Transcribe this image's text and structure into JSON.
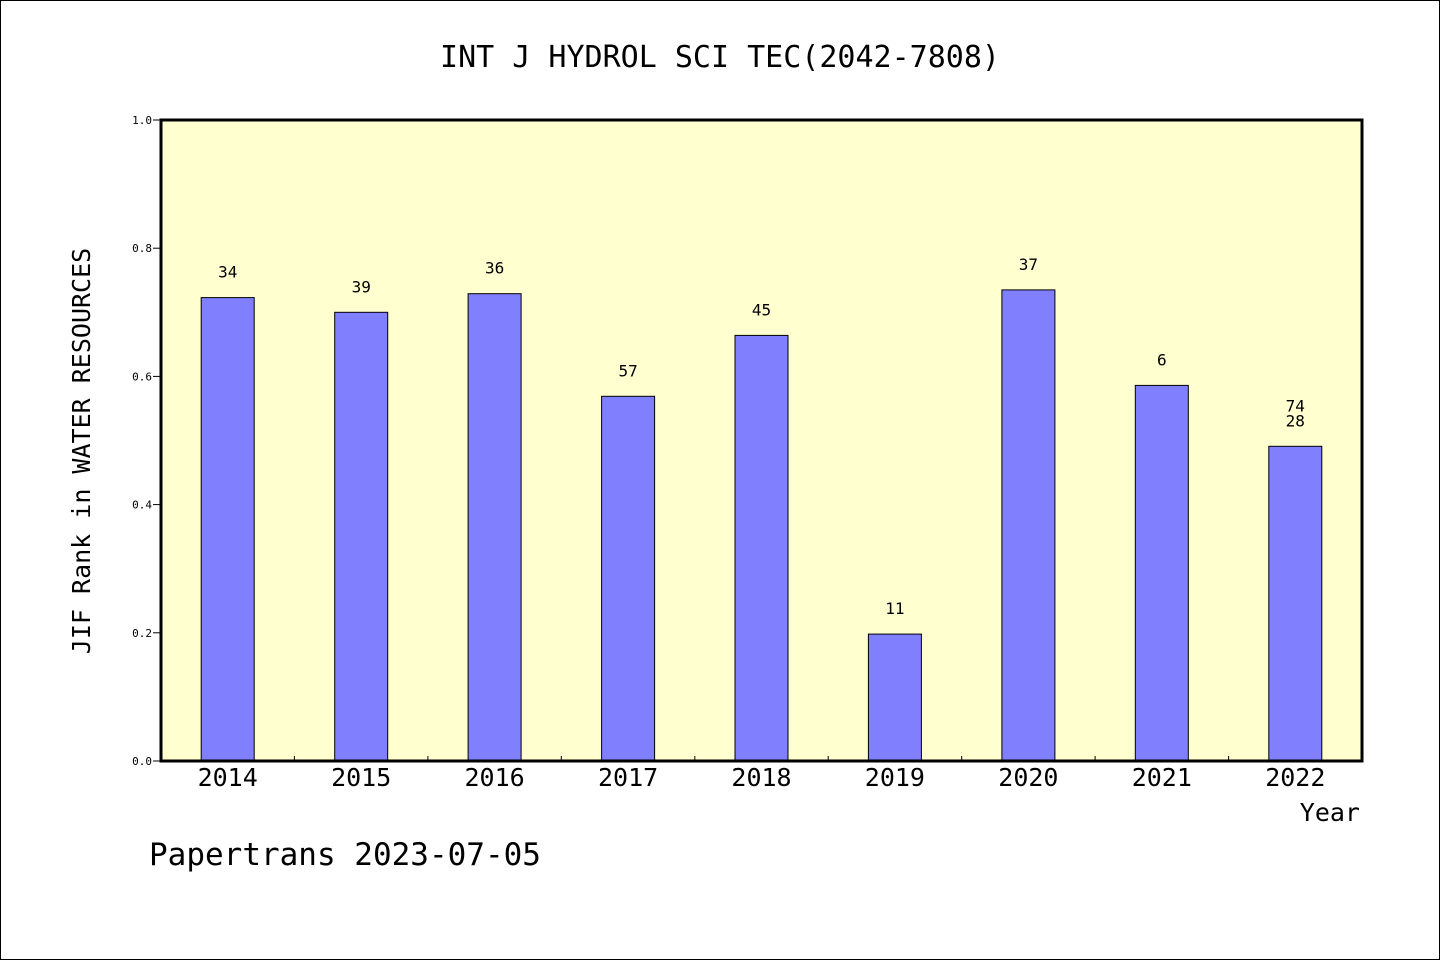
{
  "chart_data": {
    "type": "bar",
    "title": "INT J HYDROL SCI TEC(2042-7808)",
    "xlabel": "Year",
    "ylabel": "JIF Rank in WATER RESOURCES",
    "ylim": [
      0,
      1
    ],
    "yticks": [
      "0.0",
      "0.2",
      "0.4",
      "0.6",
      "0.8",
      "1.0"
    ],
    "categories": [
      "2014",
      "2015",
      "2016",
      "2017",
      "2018",
      "2019",
      "2020",
      "2021",
      "2022"
    ],
    "values": [
      0.723,
      0.7,
      0.729,
      0.569,
      0.664,
      0.198,
      0.735,
      0.586,
      0.491
    ],
    "bar_labels": [
      [
        "34"
      ],
      [
        "39"
      ],
      [
        "36"
      ],
      [
        "57"
      ],
      [
        "45"
      ],
      [
        "11"
      ],
      [
        "37"
      ],
      [
        "6"
      ],
      [
        "74",
        "28"
      ]
    ],
    "grid": false,
    "colors": {
      "bar": "#8080ff",
      "plot_background": "#ffffd0",
      "axis": "#000000"
    }
  },
  "footer": {
    "text": "Papertrans 2023-07-05"
  }
}
